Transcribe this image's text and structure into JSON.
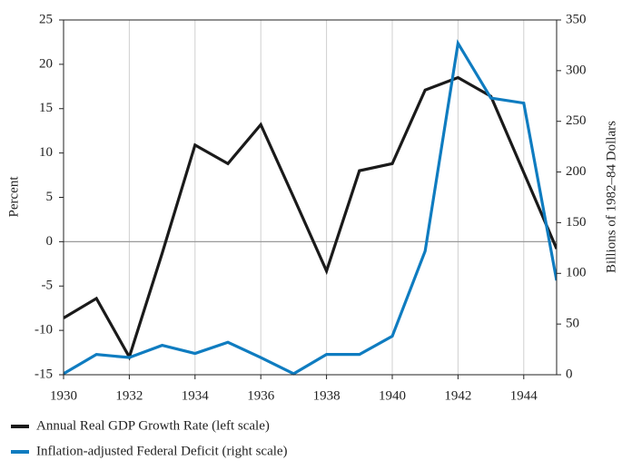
{
  "chart_data": {
    "type": "line",
    "x": [
      1930,
      1931,
      1932,
      1933,
      1934,
      1935,
      1936,
      1937,
      1938,
      1939,
      1940,
      1941,
      1942,
      1943,
      1944,
      1945
    ],
    "xlim": [
      1930,
      1945
    ],
    "xticks": [
      1930,
      1932,
      1934,
      1936,
      1938,
      1940,
      1942,
      1944
    ],
    "ylim": [
      -15,
      25
    ],
    "yticks": [
      -15,
      -10,
      -5,
      0,
      5,
      10,
      15,
      20,
      25
    ],
    "y2lim": [
      0,
      350
    ],
    "y2ticks": [
      0,
      50,
      100,
      150,
      200,
      250,
      300,
      350
    ],
    "ylabel": "Percent",
    "y2label": "Billions of 1982–84 Dollars",
    "grid": true,
    "legend": "bottom",
    "series": [
      {
        "name": "Annual Real GDP Growth Rate (left scale)",
        "color": "#1a1a1a",
        "values": [
          -8.6,
          -6.4,
          -13.0,
          -1.3,
          10.9,
          8.8,
          13.2,
          5.0,
          -3.3,
          8.0,
          8.8,
          17.1,
          18.5,
          16.4,
          7.8,
          -0.8
        ]
      },
      {
        "name": "Inflation-adjusted Federal Deficit (right scale)",
        "color": "#0f7cc0",
        "axis": "y2",
        "values": [
          1,
          20,
          17,
          29,
          21,
          32,
          17,
          1,
          20,
          20,
          38,
          122,
          327,
          273,
          268,
          93
        ]
      }
    ]
  }
}
